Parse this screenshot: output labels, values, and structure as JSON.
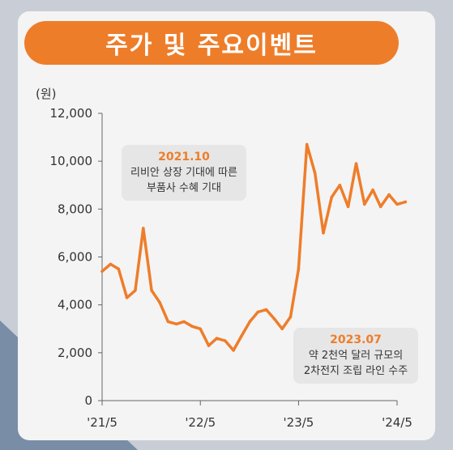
{
  "chart_data": {
    "type": "line",
    "title": "주가 및 주요이벤트",
    "unit_label": "(원)",
    "ylim": [
      0,
      12000
    ],
    "y_ticks": [
      "0",
      "2,000",
      "4,000",
      "6,000",
      "8,000",
      "10,000",
      "12,000"
    ],
    "x_ticks": [
      "'21/5",
      "'22/5",
      "'23/5",
      "'24/5"
    ],
    "x_tick_dates": [
      "2021-05",
      "2022-05",
      "2023-05",
      "2024-05"
    ],
    "series": [
      {
        "color": "#ee7d2a",
        "points": [
          [
            "2021-05",
            5400
          ],
          [
            "2021-06",
            5700
          ],
          [
            "2021-07",
            5500
          ],
          [
            "2021-08",
            4300
          ],
          [
            "2021-09",
            4600
          ],
          [
            "2021-10",
            7200
          ],
          [
            "2021-11",
            4600
          ],
          [
            "2021-12",
            4100
          ],
          [
            "2022-01",
            3300
          ],
          [
            "2022-02",
            3200
          ],
          [
            "2022-03",
            3300
          ],
          [
            "2022-04",
            3100
          ],
          [
            "2022-05",
            3000
          ],
          [
            "2022-06",
            2300
          ],
          [
            "2022-07",
            2600
          ],
          [
            "2022-08",
            2500
          ],
          [
            "2022-09",
            2100
          ],
          [
            "2022-10",
            2700
          ],
          [
            "2022-11",
            3300
          ],
          [
            "2022-12",
            3700
          ],
          [
            "2023-01",
            3800
          ],
          [
            "2023-02",
            3400
          ],
          [
            "2023-03",
            3000
          ],
          [
            "2023-04",
            3500
          ],
          [
            "2023-05",
            5500
          ],
          [
            "2023-06",
            10700
          ],
          [
            "2023-07",
            9500
          ],
          [
            "2023-08",
            7000
          ],
          [
            "2023-09",
            8500
          ],
          [
            "2023-10",
            9000
          ],
          [
            "2023-11",
            8100
          ],
          [
            "2023-12",
            9900
          ],
          [
            "2024-01",
            8200
          ],
          [
            "2024-02",
            8800
          ],
          [
            "2024-03",
            8100
          ],
          [
            "2024-04",
            8600
          ],
          [
            "2024-05",
            8200
          ],
          [
            "2024-06",
            8300
          ]
        ]
      }
    ],
    "annotations": [
      {
        "date": "2021.10",
        "line1": "리비안 상장 기대에 따른",
        "line2": "부품사 수혜 기대"
      },
      {
        "date": "2023.07",
        "line1": "약 2천억 달러 규모의",
        "line2": "2차전지 조립 라인 수주"
      }
    ],
    "grid": false,
    "legend": "none"
  }
}
